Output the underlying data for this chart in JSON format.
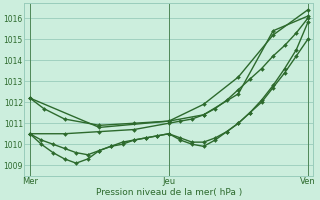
{
  "bg_color": "#cceedd",
  "grid_color": "#99ccbb",
  "line_color": "#2d6a2d",
  "marker_color": "#2d6a2d",
  "xlabel": "Pression niveau de la mer( hPa )",
  "xtick_labels": [
    "Mer",
    "Jeu",
    "Ven"
  ],
  "xtick_positions": [
    0.0,
    1.0,
    2.0
  ],
  "ylim": [
    1008.5,
    1016.7
  ],
  "yticks": [
    1009,
    1010,
    1011,
    1012,
    1013,
    1014,
    1015,
    1016
  ],
  "xlim": [
    -0.04,
    2.04
  ],
  "series": [
    {
      "x": [
        0.0,
        0.1,
        0.25,
        0.5,
        0.75,
        1.0,
        1.25,
        1.5,
        1.75,
        2.0
      ],
      "y": [
        1012.2,
        1011.7,
        1011.2,
        1010.9,
        1011.0,
        1011.1,
        1011.9,
        1013.2,
        1015.2,
        1016.4
      ],
      "lw": 1.0
    },
    {
      "x": [
        0.0,
        0.5,
        1.0,
        1.25,
        1.5,
        1.75,
        2.0
      ],
      "y": [
        1012.2,
        1010.8,
        1011.1,
        1011.4,
        1012.4,
        1015.4,
        1016.1
      ],
      "lw": 1.0
    },
    {
      "x": [
        0.0,
        0.25,
        0.5,
        0.75,
        1.0,
        1.083,
        1.167,
        1.25,
        1.333,
        1.417,
        1.5,
        1.583,
        1.667,
        1.75,
        1.833,
        1.917,
        2.0
      ],
      "y": [
        1010.5,
        1010.5,
        1010.6,
        1010.7,
        1011.0,
        1011.1,
        1011.2,
        1011.4,
        1011.7,
        1012.1,
        1012.6,
        1013.1,
        1013.6,
        1014.2,
        1014.7,
        1015.3,
        1016.0
      ],
      "lw": 1.0
    },
    {
      "x": [
        0.0,
        0.083,
        0.167,
        0.25,
        0.333,
        0.417,
        0.5,
        0.583,
        0.667,
        0.75,
        0.833,
        0.917,
        1.0,
        1.083,
        1.167,
        1.25,
        1.333,
        1.417,
        1.5,
        1.583,
        1.667,
        1.75,
        1.833,
        1.917,
        2.0
      ],
      "y": [
        1010.5,
        1010.2,
        1010.0,
        1009.8,
        1009.6,
        1009.5,
        1009.7,
        1009.9,
        1010.0,
        1010.2,
        1010.3,
        1010.4,
        1010.5,
        1010.3,
        1010.1,
        1010.1,
        1010.3,
        1010.6,
        1011.0,
        1011.5,
        1012.0,
        1012.7,
        1013.4,
        1014.2,
        1015.0
      ],
      "lw": 1.0
    },
    {
      "x": [
        0.0,
        0.083,
        0.167,
        0.25,
        0.333,
        0.417,
        0.5,
        0.583,
        0.667,
        0.75,
        0.833,
        0.917,
        1.0,
        1.083,
        1.167,
        1.25,
        1.333,
        1.417,
        1.5,
        1.583,
        1.667,
        1.75,
        1.833,
        1.917,
        2.0
      ],
      "y": [
        1010.5,
        1010.0,
        1009.6,
        1009.3,
        1009.1,
        1009.3,
        1009.7,
        1009.9,
        1010.1,
        1010.2,
        1010.3,
        1010.4,
        1010.5,
        1010.2,
        1010.0,
        1009.9,
        1010.2,
        1010.6,
        1011.0,
        1011.5,
        1012.1,
        1012.8,
        1013.6,
        1014.5,
        1015.8
      ],
      "lw": 1.0
    }
  ]
}
